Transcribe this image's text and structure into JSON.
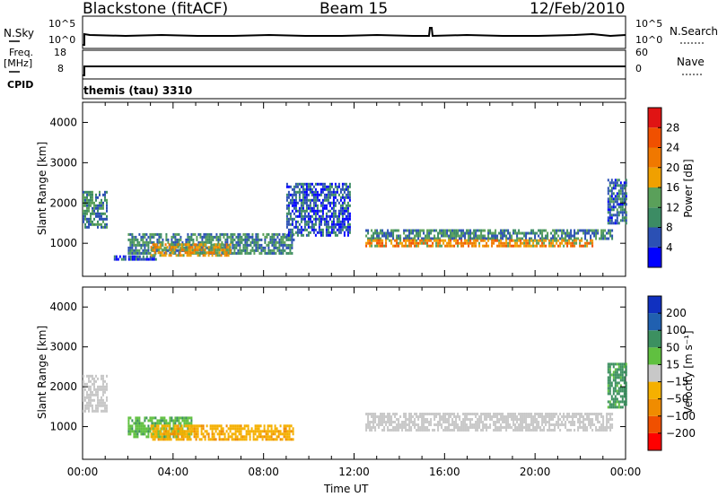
{
  "header": {
    "station": "Blackstone (fitACF)",
    "beam": "Beam 15",
    "date": "12/Feb/2010"
  },
  "strip": {
    "nsky_label": "N.Sky",
    "nsky_ticks": [
      "10^5",
      "10^0"
    ],
    "nsearch_label": "N.Search",
    "nsearch_ticks": [
      "10^5",
      "10^0"
    ],
    "freq_label": "Freq.",
    "freq_unit": "[MHz]",
    "freq_ticks": [
      "18",
      "8"
    ],
    "nave_label": "Nave",
    "nave_ticks": [
      "60",
      "0"
    ],
    "cpid_label": "CPID",
    "cpid_value": "themis (tau) 3310"
  },
  "colors": {
    "power_scale": [
      "#0000ff",
      "#2b50b4",
      "#3c8c64",
      "#5aa05a",
      "#f0a000",
      "#f07800",
      "#f05000",
      "#e01414"
    ],
    "velocity_scale": [
      "#ff0000",
      "#f05000",
      "#f08c00",
      "#f5b000",
      "#c8c8c8",
      "#60c040",
      "#3c9060",
      "#2060b0",
      "#1030c0"
    ]
  },
  "chart_data": [
    {
      "type": "heatmap",
      "title": "Power",
      "xlabel": "Time UT",
      "ylabel": "Slant Range [km]",
      "xlim": [
        "00:00",
        "24:00"
      ],
      "ylim": [
        180,
        4500
      ],
      "x_ticks": [
        "00:00",
        "04:00",
        "08:00",
        "12:00",
        "16:00",
        "20:00",
        "00:00"
      ],
      "y_ticks": [
        1000,
        2000,
        3000,
        4000
      ],
      "colorbar": {
        "label": "Power [dB]",
        "ticks": [
          4,
          8,
          12,
          16,
          20,
          24,
          28
        ],
        "range": [
          0,
          32
        ]
      },
      "regions": [
        {
          "t_start": 0.0,
          "t_end": 1.1,
          "r_min": 1400,
          "r_max": 2300,
          "value": 10
        },
        {
          "t_start": 1.3,
          "t_end": 3.3,
          "r_min": 620,
          "r_max": 700,
          "value": 6
        },
        {
          "t_start": 2.0,
          "t_end": 9.3,
          "r_min": 750,
          "r_max": 1250,
          "value": 10
        },
        {
          "t_start": 3.0,
          "t_end": 6.5,
          "r_min": 700,
          "r_max": 1000,
          "value": 18
        },
        {
          "t_start": 9.0,
          "t_end": 11.8,
          "r_min": 1200,
          "r_max": 2500,
          "value": 6
        },
        {
          "t_start": 12.5,
          "t_end": 23.4,
          "r_min": 1100,
          "r_max": 1350,
          "value": 10
        },
        {
          "t_start": 12.5,
          "t_end": 22.5,
          "r_min": 900,
          "r_max": 1100,
          "value": 20
        },
        {
          "t_start": 23.2,
          "t_end": 24.0,
          "r_min": 1500,
          "r_max": 2600,
          "value": 8
        }
      ]
    },
    {
      "type": "heatmap",
      "title": "Velocity",
      "xlabel": "Time UT",
      "ylabel": "Slant Range [km]",
      "xlim": [
        "00:00",
        "24:00"
      ],
      "ylim": [
        180,
        4500
      ],
      "x_ticks": [
        "00:00",
        "04:00",
        "08:00",
        "12:00",
        "16:00",
        "20:00",
        "00:00"
      ],
      "y_ticks": [
        1000,
        2000,
        3000,
        4000
      ],
      "colorbar": {
        "label": "Velocity [m s⁻¹]",
        "ticks": [
          200,
          100,
          50,
          15,
          -15,
          -50,
          -100,
          -200
        ]
      },
      "regions": [
        {
          "t_start": 0.0,
          "t_end": 1.1,
          "r_min": 1400,
          "r_max": 2300,
          "value": 0
        },
        {
          "t_start": 2.0,
          "t_end": 4.8,
          "r_min": 750,
          "r_max": 1250,
          "value": 40
        },
        {
          "t_start": 3.0,
          "t_end": 9.3,
          "r_min": 650,
          "r_max": 1050,
          "value": -40
        },
        {
          "t_start": 12.5,
          "t_end": 23.4,
          "r_min": 900,
          "r_max": 1350,
          "value": 0
        },
        {
          "t_start": 23.2,
          "t_end": 24.0,
          "r_min": 1500,
          "r_max": 2600,
          "value": 60
        }
      ]
    }
  ]
}
